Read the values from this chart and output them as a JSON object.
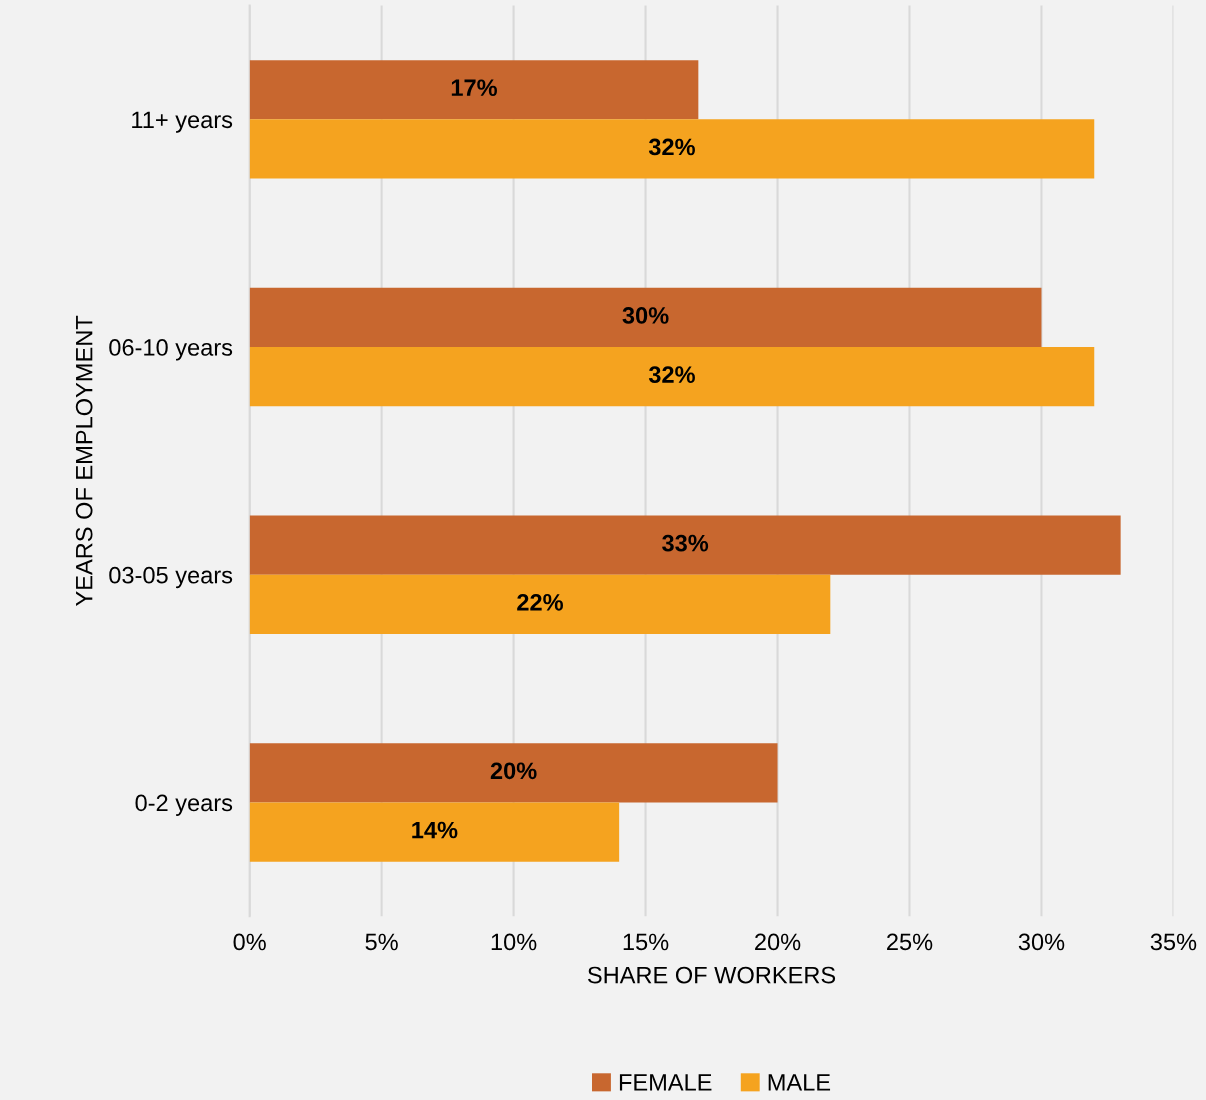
{
  "chart_data": {
    "type": "bar",
    "orientation": "horizontal",
    "xlabel": "SHARE OF WORKERS",
    "ylabel": "YEARS OF EMPLOYMENT",
    "categories": [
      "11+ years",
      "06-10 years",
      "03-05 years",
      "0-2 years"
    ],
    "series": [
      {
        "name": "FEMALE",
        "color": "#c8672f",
        "values": [
          17,
          30,
          33,
          20
        ],
        "value_labels": [
          "17%",
          "30%",
          "33%",
          "20%"
        ]
      },
      {
        "name": "MALE",
        "color": "#f5a31f",
        "values": [
          32,
          32,
          22,
          14
        ],
        "value_labels": [
          "32%",
          "32%",
          "22%",
          "14%"
        ]
      }
    ],
    "xlim": [
      0,
      35
    ],
    "xticks": [
      {
        "value": 0,
        "label": "0%"
      },
      {
        "value": 5,
        "label": "5%"
      },
      {
        "value": 10,
        "label": "10%"
      },
      {
        "value": 15,
        "label": "15%"
      },
      {
        "value": 20,
        "label": "20%"
      },
      {
        "value": 25,
        "label": "25%"
      },
      {
        "value": 30,
        "label": "30%"
      },
      {
        "value": 35,
        "label": "35%"
      }
    ],
    "grid": "x",
    "legend": "bottom"
  }
}
